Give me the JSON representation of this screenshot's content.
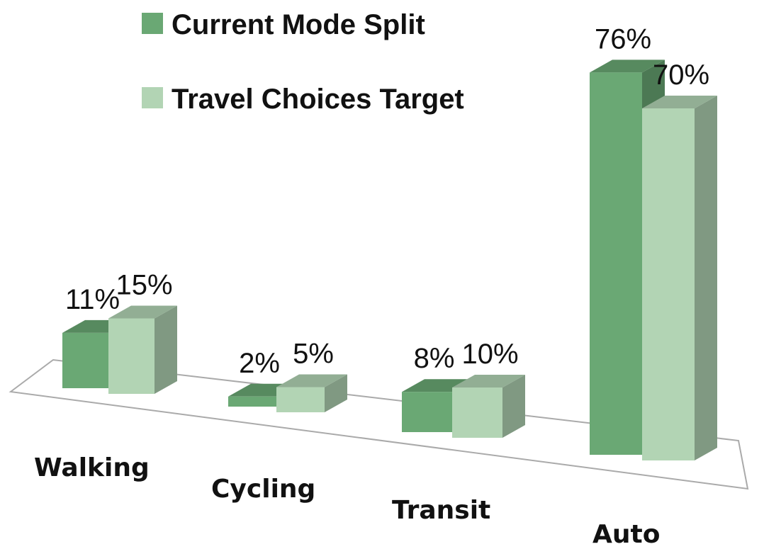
{
  "chart_data": {
    "type": "bar3d",
    "categories": [
      "Walking",
      "Cycling",
      "Transit",
      "Auto"
    ],
    "series": [
      {
        "name": "Current Mode Split",
        "color": "#6aa874",
        "values": [
          11,
          2,
          8,
          76
        ],
        "value_labels": [
          "11%",
          "2%",
          "8%",
          "76%"
        ]
      },
      {
        "name": "Travel Choices Target",
        "color": "#b2d4b4",
        "values": [
          15,
          5,
          10,
          70
        ],
        "value_labels": [
          "15%",
          "5%",
          "10%",
          "70%"
        ]
      }
    ],
    "legend": "top"
  }
}
